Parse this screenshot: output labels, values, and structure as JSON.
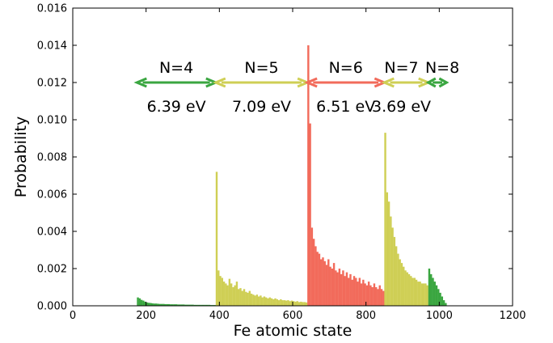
{
  "chart_data": {
    "type": "bar",
    "title": "",
    "xlabel": "Fe atomic state",
    "ylabel": "Probability",
    "xlim": [
      0,
      1200
    ],
    "ylim": [
      0,
      0.016
    ],
    "xticks": [
      "0",
      "200",
      "400",
      "600",
      "800",
      "1000",
      "1200"
    ],
    "yticks": [
      "0.000",
      "0.002",
      "0.004",
      "0.006",
      "0.008",
      "0.010",
      "0.012",
      "0.014",
      "0.016"
    ],
    "grid": false,
    "colors": {
      "N4": "#3aa640",
      "N5": "#cfcf55",
      "N6": "#f26b5b",
      "N7": "#cfcf55",
      "N8": "#3aa640"
    },
    "arrow_level": 0.012,
    "regions": [
      {
        "label": "N=4",
        "energy": "6.39 eV",
        "start": 175,
        "end": 390,
        "color": "#3aa640"
      },
      {
        "label": "N=5",
        "energy": "7.09 eV",
        "start": 390,
        "end": 640,
        "color": "#cfcf55"
      },
      {
        "label": "N=6",
        "energy": "6.51 eV",
        "start": 640,
        "end": 850,
        "color": "#f26b5b"
      },
      {
        "label": "N=7",
        "energy": "3.69 eV",
        "start": 850,
        "end": 970,
        "color": "#cfcf55"
      },
      {
        "label": "N=8",
        "energy": "",
        "start": 970,
        "end": 1020,
        "color": "#3aa640"
      }
    ],
    "series": [
      {
        "region": "N=4",
        "x_start": 175,
        "x_end": 390,
        "values": [
          0.00045,
          0.0004,
          0.00032,
          0.00028,
          0.00022,
          0.00018,
          0.00016,
          0.00015,
          0.00013,
          0.00012,
          0.00012,
          0.00011,
          0.0001,
          0.0001,
          0.0001,
          9e-05,
          9e-05,
          9e-05,
          8e-05,
          8e-05,
          8e-05,
          8e-05,
          7e-05,
          7e-05,
          7e-05,
          7e-05,
          6e-05,
          6e-05,
          6e-05,
          6e-05,
          6e-05,
          5e-05,
          5e-05,
          5e-05,
          5e-05,
          5e-05,
          5e-05,
          5e-05,
          5e-05,
          5e-05,
          4e-05,
          4e-05,
          4e-05
        ]
      },
      {
        "region": "N=5",
        "x_start": 390,
        "x_end": 640,
        "values": [
          0.0072,
          0.0019,
          0.0016,
          0.0015,
          0.0013,
          0.0012,
          0.0011,
          0.00145,
          0.0012,
          0.001,
          0.0011,
          0.0013,
          0.0009,
          0.00095,
          0.0008,
          0.0009,
          0.00075,
          0.0007,
          0.0008,
          0.00065,
          0.0006,
          0.00055,
          0.0006,
          0.0005,
          0.00055,
          0.00045,
          0.0005,
          0.00045,
          0.0004,
          0.00045,
          0.0004,
          0.00035,
          0.0004,
          0.00035,
          0.0003,
          0.00035,
          0.0003,
          0.0003,
          0.00028,
          0.0003,
          0.00025,
          0.00028,
          0.00025,
          0.00022,
          0.00025,
          0.0002,
          0.00022,
          0.0002,
          0.0002,
          0.00018
        ]
      },
      {
        "region": "N=6",
        "x_start": 640,
        "x_end": 850,
        "values": [
          0.014,
          0.0098,
          0.0042,
          0.0036,
          0.0032,
          0.0029,
          0.0028,
          0.0025,
          0.0026,
          0.0024,
          0.0022,
          0.0025,
          0.0021,
          0.002,
          0.0023,
          0.0019,
          0.0018,
          0.002,
          0.0017,
          0.0019,
          0.0016,
          0.0018,
          0.0015,
          0.0017,
          0.0014,
          0.0016,
          0.0015,
          0.0013,
          0.0015,
          0.0012,
          0.0014,
          0.0012,
          0.0011,
          0.0013,
          0.0011,
          0.001,
          0.0012,
          0.001,
          0.0009,
          0.0011,
          0.0009,
          0.0008
        ]
      },
      {
        "region": "N=7",
        "x_start": 850,
        "x_end": 970,
        "values": [
          0.0093,
          0.0061,
          0.0056,
          0.0048,
          0.0042,
          0.0037,
          0.0032,
          0.0028,
          0.0025,
          0.0023,
          0.0021,
          0.0019,
          0.0018,
          0.0017,
          0.0016,
          0.0015,
          0.0015,
          0.0014,
          0.0013,
          0.0013,
          0.0012,
          0.0012,
          0.0012,
          0.0011
        ]
      },
      {
        "region": "N=8",
        "x_start": 970,
        "x_end": 1020,
        "values": [
          0.002,
          0.0017,
          0.0015,
          0.0013,
          0.0011,
          0.0009,
          0.0007,
          0.0005,
          0.0003,
          0.00015
        ]
      }
    ]
  }
}
